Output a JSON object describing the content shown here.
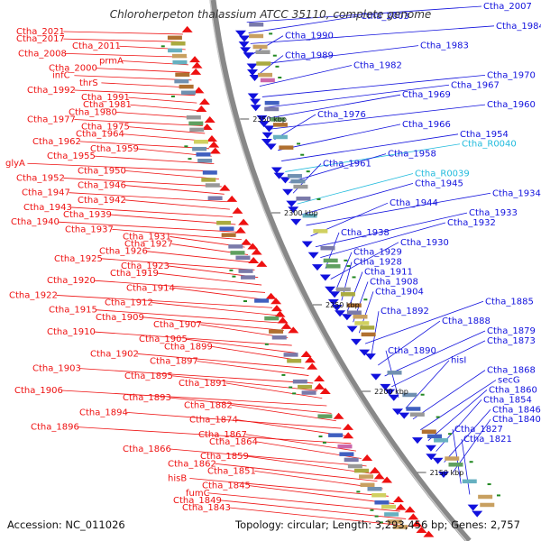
{
  "title": "Chloroherpeton thalassium ATCC 35110, complete genome",
  "footer": {
    "accession": "Accession: NC_011026",
    "summary": "Topology: circular; Length: 3,293,456 bp; Genes: 2,757"
  },
  "colors": {
    "forward": "#ee1111",
    "reverse": "#1111dd",
    "rna": "#22bbdd",
    "backbone": "#888888",
    "tick": "#228822"
  },
  "scale_labels": [
    "2350 kbp",
    "2300 kbp",
    "2250 kbp",
    "2200 kbp",
    "2150 kbp"
  ],
  "left_labels": [
    "Ctha_2021",
    "Ctha_2017",
    "Ctha_2011",
    "Ctha_2008",
    "prmA",
    "Ctha_2000",
    "infC",
    "thrS",
    "Ctha_1992",
    "Ctha_1991",
    "Ctha_1981",
    "Ctha_1980",
    "Ctha_1977",
    "Ctha_1975",
    "Ctha_1964",
    "Ctha_1962",
    "Ctha_1959",
    "Ctha_1955",
    "glyA",
    "Ctha_1950",
    "Ctha_1952",
    "Ctha_1946",
    "Ctha_1947",
    "Ctha_1942",
    "Ctha_1943",
    "Ctha_1939",
    "Ctha_1940",
    "Ctha_1937",
    "Ctha_1931",
    "Ctha_1927",
    "Ctha_1926",
    "Ctha_1925",
    "Ctha_1923",
    "Ctha_1919",
    "Ctha_1920",
    "Ctha_1914",
    "Ctha_1922",
    "Ctha_1912",
    "Ctha_1915",
    "Ctha_1909",
    "Ctha_1907",
    "Ctha_1910",
    "Ctha_1905",
    "Ctha_1899",
    "Ctha_1902",
    "Ctha_1897",
    "Ctha_1903",
    "Ctha_1895",
    "Ctha_1891",
    "Ctha_1906",
    "Ctha_1893",
    "Ctha_1882",
    "Ctha_1894",
    "Ctha_1874",
    "Ctha_1896",
    "Ctha_1867",
    "Ctha_1864",
    "Ctha_1866",
    "Ctha_1859",
    "Ctha_1862",
    "Ctha_1851",
    "hisB",
    "Ctha_1845",
    "fumC",
    "Ctha_1849",
    "Ctha_1843"
  ],
  "right_labels": [
    "Ctha_2007",
    "Ctha_2003",
    "Ctha_1984",
    "Ctha_1990",
    "Ctha_1983",
    "Ctha_1989",
    "Ctha_1982",
    "Ctha_1970",
    "Ctha_1967",
    "Ctha_1969",
    "Ctha_1960",
    "Ctha_1976",
    "Ctha_1966",
    "Ctha_1954",
    "Ctha_R0040",
    "Ctha_1958",
    "Ctha_1961",
    "Ctha_R0039",
    "Ctha_1945",
    "Ctha_1934",
    "Ctha_1944",
    "Ctha_1933",
    "Ctha_1932",
    "Ctha_1938",
    "Ctha_1930",
    "Ctha_1929",
    "Ctha_1928",
    "Ctha_1911",
    "Ctha_1908",
    "Ctha_1904",
    "Ctha_1885",
    "Ctha_1892",
    "Ctha_1888",
    "Ctha_1879",
    "Ctha_1873",
    "Ctha_1890",
    "hisI",
    "Ctha_1868",
    "secG",
    "Ctha_1860",
    "Ctha_1854",
    "Ctha_1846",
    "Ctha_1840",
    "Ctha_1827",
    "Ctha_1821"
  ]
}
